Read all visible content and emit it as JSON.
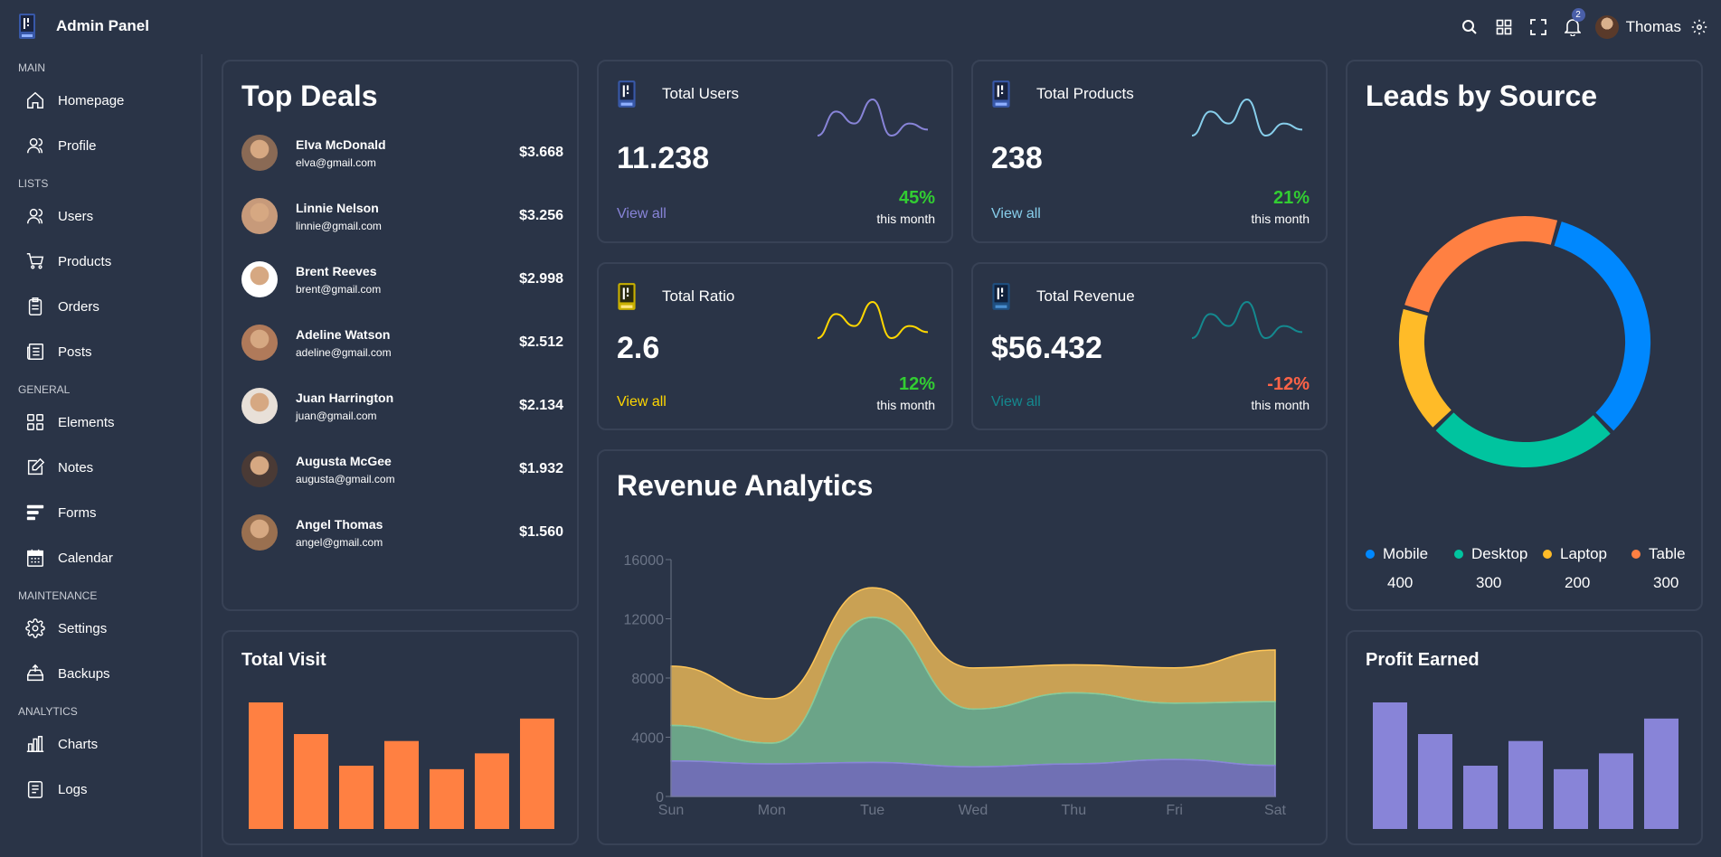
{
  "app": {
    "title": "Admin Panel",
    "logo_icon": "logo-icon"
  },
  "header": {
    "notification_count": "2",
    "user_name": "Thomas"
  },
  "sidebar": {
    "sections": [
      {
        "title": "MAIN",
        "items": [
          {
            "label": "Homepage",
            "icon": "home-icon"
          },
          {
            "label": "Profile",
            "icon": "user-icon"
          }
        ]
      },
      {
        "title": "LISTS",
        "items": [
          {
            "label": "Users",
            "icon": "users-icon"
          },
          {
            "label": "Products",
            "icon": "cart-icon"
          },
          {
            "label": "Orders",
            "icon": "clipboard-icon"
          },
          {
            "label": "Posts",
            "icon": "posts-icon"
          }
        ]
      },
      {
        "title": "GENERAL",
        "items": [
          {
            "label": "Elements",
            "icon": "grid-icon"
          },
          {
            "label": "Notes",
            "icon": "note-icon"
          },
          {
            "label": "Forms",
            "icon": "forms-icon"
          },
          {
            "label": "Calendar",
            "icon": "calendar-icon"
          }
        ]
      },
      {
        "title": "MAINTENANCE",
        "items": [
          {
            "label": "Settings",
            "icon": "gear-icon"
          },
          {
            "label": "Backups",
            "icon": "backup-icon"
          }
        ]
      },
      {
        "title": "ANALYTICS",
        "items": [
          {
            "label": "Charts",
            "icon": "chart-icon"
          },
          {
            "label": "Logs",
            "icon": "logs-icon"
          }
        ]
      }
    ]
  },
  "top_deals": {
    "title": "Top Deals",
    "deals": [
      {
        "name": "Elva McDonald",
        "email": "elva@gmail.com",
        "amount": "$3.668"
      },
      {
        "name": "Linnie Nelson",
        "email": "linnie@gmail.com",
        "amount": "$3.256"
      },
      {
        "name": "Brent Reeves",
        "email": "brent@gmail.com",
        "amount": "$2.998"
      },
      {
        "name": "Adeline Watson",
        "email": "adeline@gmail.com",
        "amount": "$2.512"
      },
      {
        "name": "Juan Harrington",
        "email": "juan@gmail.com",
        "amount": "$2.134"
      },
      {
        "name": "Augusta McGee",
        "email": "augusta@gmail.com",
        "amount": "$1.932"
      },
      {
        "name": "Angel Thomas",
        "email": "angel@gmail.com",
        "amount": "$1.560"
      }
    ]
  },
  "stats": {
    "users": {
      "label": "Total Users",
      "value": "11.238",
      "link": "View all",
      "pct": "45%",
      "period": "this month",
      "color": "#8884d8",
      "pct_color": "#32cd32"
    },
    "products": {
      "label": "Total Products",
      "value": "238",
      "link": "View all",
      "pct": "21%",
      "period": "this month",
      "color": "#87ceeb",
      "pct_color": "#32cd32"
    },
    "ratio": {
      "label": "Total Ratio",
      "value": "2.6",
      "link": "View all",
      "pct": "12%",
      "period": "this month",
      "color": "#ffd700",
      "pct_color": "#32cd32"
    },
    "revenue": {
      "label": "Total Revenue",
      "value": "$56.432",
      "link": "View all",
      "pct": "-12%",
      "period": "this month",
      "color": "#14898f",
      "pct_color": "#ff6347"
    }
  },
  "revenue_analytics": {
    "title": "Revenue Analytics"
  },
  "leads": {
    "title": "Leads by Source",
    "items": [
      {
        "name": "Mobile",
        "value": "400",
        "color": "#0088fe"
      },
      {
        "name": "Desktop",
        "value": "300",
        "color": "#00c49f"
      },
      {
        "name": "Laptop",
        "value": "200",
        "color": "#ffbb28"
      },
      {
        "name": "Table",
        "value": "300",
        "color": "#ff8042"
      }
    ]
  },
  "total_visit": {
    "title": "Total Visit",
    "color": "#ff8042"
  },
  "profit_earned": {
    "title": "Profit Earned",
    "color": "#8884d8"
  },
  "chart_data": [
    {
      "type": "area",
      "x": [
        "Sun",
        "Mon",
        "Tue",
        "Wed",
        "Thu",
        "Fri",
        "Sat"
      ],
      "ylim": [
        0,
        16000
      ],
      "yticks": [
        "0",
        "4000",
        "8000",
        "12000",
        "16000"
      ],
      "stacked": true,
      "series": [
        {
          "values": [
            2400,
            2200,
            2300,
            2000,
            2200,
            2500,
            2100
          ],
          "color": "#8884d8"
        },
        {
          "values": [
            2400,
            1400,
            9800,
            3900,
            4800,
            3800,
            4300
          ],
          "color": "#82ca9d"
        },
        {
          "values": [
            4000,
            3000,
            2000,
            2780,
            1890,
            2390,
            3490
          ],
          "color": "#ffc658"
        }
      ]
    },
    {
      "type": "pie",
      "labels": [
        "Mobile",
        "Desktop",
        "Laptop",
        "Table"
      ],
      "values": [
        400,
        300,
        200,
        300
      ],
      "colors": [
        "#0088fe",
        "#00c49f",
        "#ffbb28",
        "#ff8042"
      ]
    },
    {
      "type": "bar",
      "title": "Total Visit",
      "values": [
        4000,
        3000,
        2000,
        2780,
        1890,
        2390,
        3490
      ]
    },
    {
      "type": "bar",
      "title": "Profit Earned",
      "values": [
        4000,
        3000,
        2000,
        2780,
        1890,
        2390,
        3490
      ]
    },
    {
      "type": "line",
      "values": [
        400,
        600,
        500,
        700,
        400,
        500,
        450
      ]
    },
    {
      "type": "line",
      "values": [
        400,
        600,
        500,
        700,
        400,
        500,
        450
      ]
    },
    {
      "type": "line",
      "values": [
        400,
        600,
        500,
        700,
        400,
        500,
        450
      ]
    },
    {
      "type": "line",
      "values": [
        400,
        600,
        500,
        700,
        400,
        500,
        450
      ]
    }
  ]
}
